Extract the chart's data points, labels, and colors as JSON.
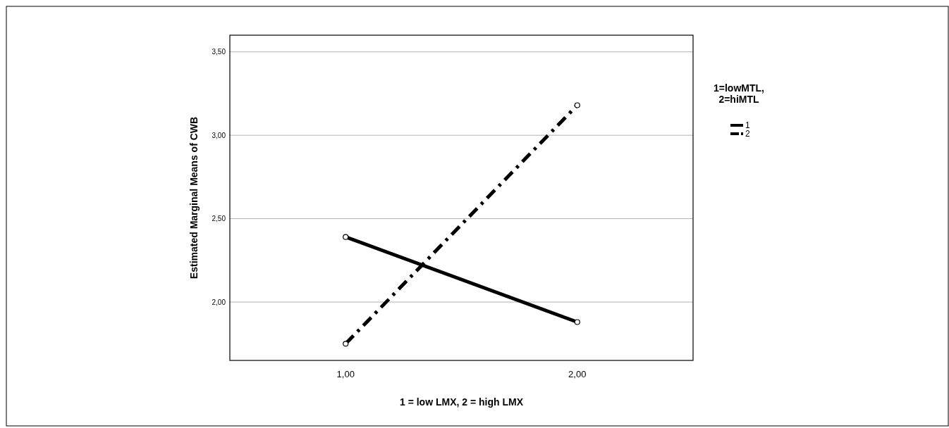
{
  "chart_data": {
    "type": "line",
    "xlabel": "1 = low LMX, 2 = high LMX",
    "ylabel": "Estimated Marginal Means of CWB",
    "legend_title": "1=lowMTL, 2=hiMTL",
    "categories": [
      "1,00",
      "2,00"
    ],
    "series": [
      {
        "name": "1",
        "color": "#000000",
        "values": [
          2.39,
          1.88
        ],
        "line_style": "solid"
      },
      {
        "name": "2",
        "color": "#000000",
        "values": [
          1.75,
          3.18
        ],
        "line_style": "dashed"
      }
    ],
    "ylim": [
      1.65,
      3.6
    ],
    "yticks": [
      {
        "value": 2,
        "label": "2,00"
      },
      {
        "value": 2.5,
        "label": "2,50"
      },
      {
        "value": 3,
        "label": "3,00"
      },
      {
        "value": 3.5,
        "label": "3,50"
      }
    ],
    "grid": "y",
    "legend": "right",
    "marker": "circle"
  }
}
